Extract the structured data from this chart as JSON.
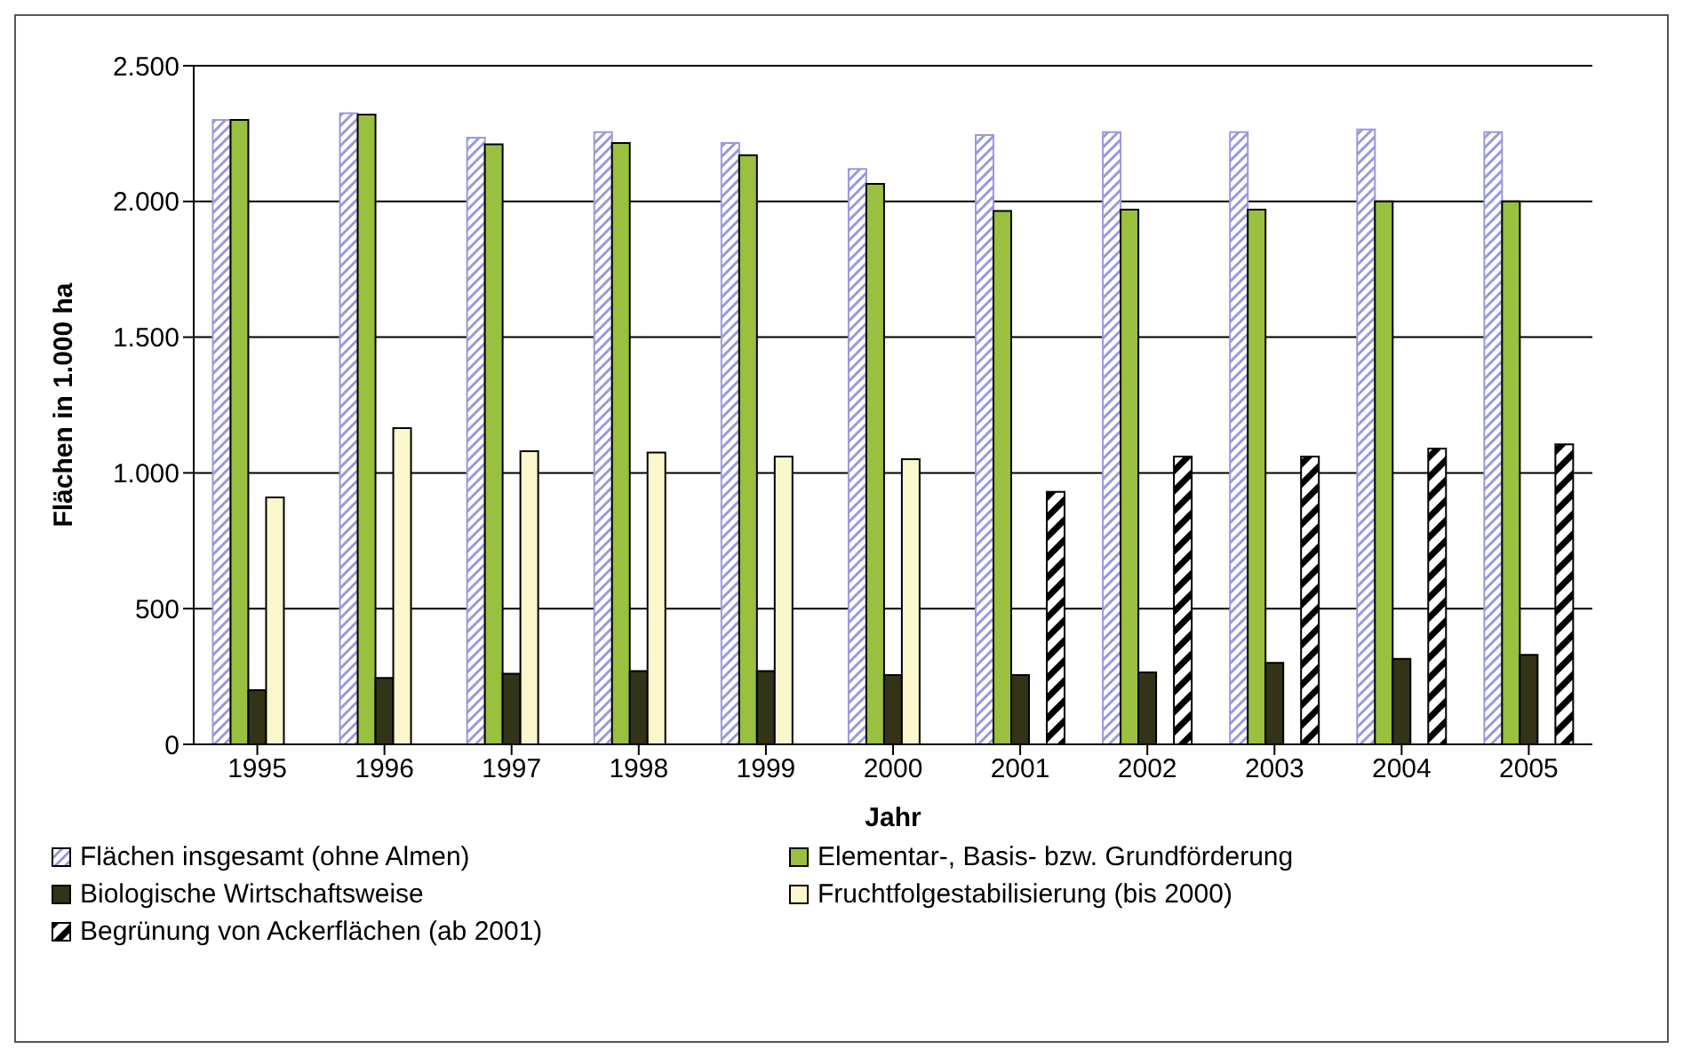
{
  "chart_data": {
    "type": "bar",
    "xlabel": "Jahr",
    "ylabel": "Flächen in 1.000 ha",
    "categories": [
      "1995",
      "1996",
      "1997",
      "1998",
      "1999",
      "2000",
      "2001",
      "2002",
      "2003",
      "2004",
      "2005"
    ],
    "series": [
      {
        "name": "Flächen insgesamt (ohne Almen)",
        "color": "#9999dd",
        "values": [
          2300,
          2325,
          2235,
          2255,
          2215,
          2120,
          2245,
          2255,
          2255,
          2265,
          2255
        ]
      },
      {
        "name": "Elementar-, Basis- bzw. Grundförderung",
        "color": "#99c03e",
        "values": [
          2300,
          2320,
          2210,
          2215,
          2170,
          2065,
          1965,
          1970,
          1970,
          2000,
          2000
        ]
      },
      {
        "name": "Biologische Wirtschaftsweise",
        "color": "#333318",
        "values": [
          200,
          245,
          260,
          270,
          270,
          255,
          255,
          265,
          300,
          315,
          330
        ]
      },
      {
        "name": "Fruchtfolgestabilisierung (bis 2000)",
        "color": "#fbf7cd",
        "values": [
          910,
          1165,
          1080,
          1075,
          1060,
          1050,
          null,
          null,
          null,
          null,
          null
        ]
      },
      {
        "name": "Begrünung von Ackerflächen (ab 2001)",
        "color": "#000000",
        "values": [
          null,
          null,
          null,
          null,
          null,
          null,
          930,
          1060,
          1060,
          1090,
          1105
        ]
      }
    ],
    "ylim": [
      0,
      2500
    ],
    "yticks": [
      {
        "value": 0,
        "label": "0"
      },
      {
        "value": 500,
        "label": "500"
      },
      {
        "value": 1000,
        "label": "1.000"
      },
      {
        "value": 1500,
        "label": "1.500"
      },
      {
        "value": 2000,
        "label": "2.000"
      },
      {
        "value": 2500,
        "label": "2.500"
      }
    ],
    "grid": "y",
    "legend": "bottom"
  }
}
